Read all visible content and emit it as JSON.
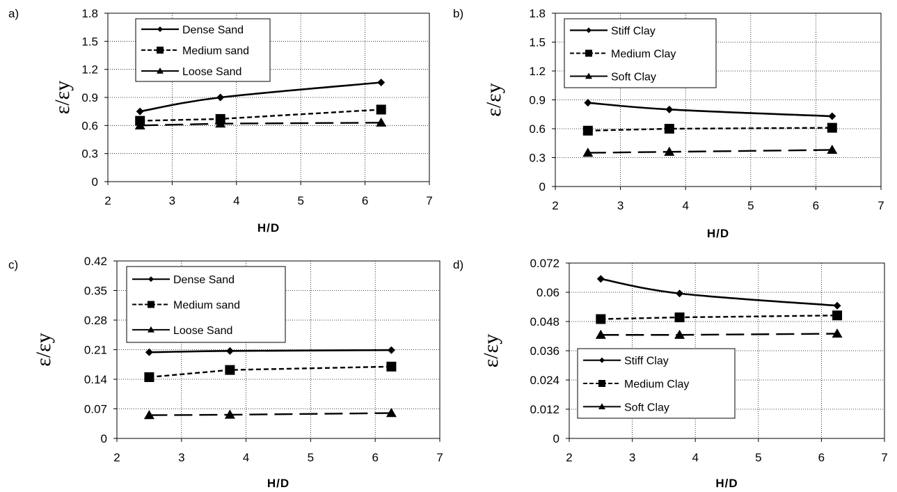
{
  "chart_data": [
    {
      "panel": "a)",
      "type": "line",
      "xlabel": "H/D",
      "ylabel": "ε/εy",
      "xlim": [
        2,
        7
      ],
      "ylim": [
        0,
        1.8
      ],
      "xticks": [
        "2",
        "3",
        "4",
        "5",
        "6",
        "7"
      ],
      "yticks": [
        "0",
        "0.3",
        "0.6",
        "0.9",
        "1.2",
        "1.5",
        "1.8"
      ],
      "grid": "dotted",
      "legend": "top-left",
      "x": [
        2.5,
        3.75,
        6.25
      ],
      "series": [
        {
          "name": "Dense Sand",
          "values": [
            0.75,
            0.9,
            1.06
          ],
          "marker": "diamond",
          "style": "solid"
        },
        {
          "name": "Medium sand",
          "values": [
            0.65,
            0.67,
            0.77
          ],
          "marker": "square",
          "style": "dashed"
        },
        {
          "name": "Loose Sand",
          "values": [
            0.6,
            0.62,
            0.63
          ],
          "marker": "triangle",
          "style": "longdash"
        }
      ]
    },
    {
      "panel": "b)",
      "type": "line",
      "xlabel": "H/D",
      "ylabel": "ε/εy",
      "xlim": [
        2,
        7
      ],
      "ylim": [
        0,
        1.8
      ],
      "xticks": [
        "2",
        "3",
        "4",
        "5",
        "6",
        "7"
      ],
      "yticks": [
        "0",
        "0.3",
        "0.6",
        "0.9",
        "1.2",
        "1.5",
        "1.8"
      ],
      "grid": "dotted",
      "legend": "top-left",
      "x": [
        2.5,
        3.75,
        6.25
      ],
      "series": [
        {
          "name": "Stiff Clay",
          "values": [
            0.87,
            0.8,
            0.73
          ],
          "marker": "diamond",
          "style": "solid"
        },
        {
          "name": "Medium Clay",
          "values": [
            0.58,
            0.6,
            0.61
          ],
          "marker": "square",
          "style": "dashed"
        },
        {
          "name": "Soft Clay",
          "values": [
            0.35,
            0.36,
            0.38
          ],
          "marker": "triangle",
          "style": "longdash"
        }
      ]
    },
    {
      "panel": "c)",
      "type": "line",
      "xlabel": "H/D",
      "ylabel": "ε/εy",
      "xlim": [
        2,
        7
      ],
      "ylim": [
        0,
        0.42
      ],
      "xticks": [
        "2",
        "3",
        "4",
        "5",
        "6",
        "7"
      ],
      "yticks": [
        "0",
        "0.07",
        "0.14",
        "0.21",
        "0.28",
        "0.35",
        "0.42"
      ],
      "grid": "dotted",
      "legend": "top-left",
      "x": [
        2.5,
        3.75,
        6.25
      ],
      "series": [
        {
          "name": "Dense Sand",
          "values": [
            0.204,
            0.207,
            0.209
          ],
          "marker": "diamond",
          "style": "solid"
        },
        {
          "name": "Medium sand",
          "values": [
            0.145,
            0.162,
            0.17
          ],
          "marker": "square",
          "style": "dashed"
        },
        {
          "name": "Loose Sand",
          "values": [
            0.055,
            0.056,
            0.06
          ],
          "marker": "triangle",
          "style": "longdash"
        }
      ]
    },
    {
      "panel": "d)",
      "type": "line",
      "xlabel": "H/D",
      "ylabel": "ε/εy",
      "xlim": [
        2,
        7
      ],
      "ylim": [
        0,
        0.072
      ],
      "xticks": [
        "2",
        "3",
        "4",
        "5",
        "6",
        "7"
      ],
      "yticks": [
        "0",
        "0.012",
        "0.024",
        "0.036",
        "0.048",
        "0.06",
        "0.072"
      ],
      "grid": "dotted",
      "legend": "bottom-left",
      "x": [
        2.5,
        3.75,
        6.25
      ],
      "series": [
        {
          "name": "Stiff Clay",
          "values": [
            0.0655,
            0.0595,
            0.0545
          ],
          "marker": "diamond",
          "style": "solid"
        },
        {
          "name": "Medium Clay",
          "values": [
            0.049,
            0.0497,
            0.0505
          ],
          "marker": "square",
          "style": "dashed"
        },
        {
          "name": "Soft Clay",
          "values": [
            0.0425,
            0.0425,
            0.043
          ],
          "marker": "triangle",
          "style": "longdash"
        }
      ]
    }
  ]
}
